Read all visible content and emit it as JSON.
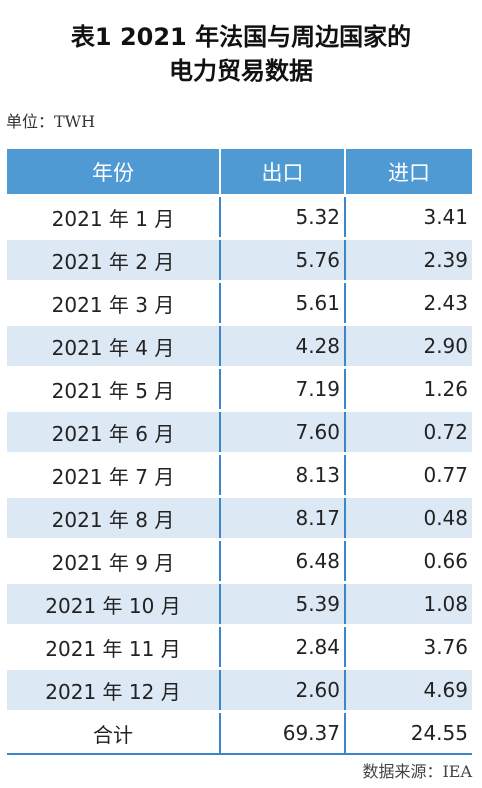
{
  "title": {
    "line1": "表1   2021 年法国与周边国家的",
    "line2": "电力贸易数据"
  },
  "unit": "单位：TWH",
  "table": {
    "headers": [
      "年份",
      "出口",
      "进口"
    ],
    "rows": [
      {
        "month": "2021 年 1 月",
        "export": "5.32",
        "import": "3.41"
      },
      {
        "month": "2021 年 2 月",
        "export": "5.76",
        "import": "2.39"
      },
      {
        "month": "2021 年 3 月",
        "export": "5.61",
        "import": "2.43"
      },
      {
        "month": "2021 年 4 月",
        "export": "4.28",
        "import": "2.90"
      },
      {
        "month": "2021 年 5 月",
        "export": "7.19",
        "import": "1.26"
      },
      {
        "month": "2021 年 6 月",
        "export": "7.60",
        "import": "0.72"
      },
      {
        "month": "2021 年 7 月",
        "export": "8.13",
        "import": "0.77"
      },
      {
        "month": "2021 年 8 月",
        "export": "8.17",
        "import": "0.48"
      },
      {
        "month": "2021 年 9 月",
        "export": "6.48",
        "import": "0.66"
      },
      {
        "month": "2021 年 10 月",
        "export": "5.39",
        "import": "1.08"
      },
      {
        "month": "2021 年 11 月",
        "export": "2.84",
        "import": "3.76"
      },
      {
        "month": "2021 年 12 月",
        "export": "2.60",
        "import": "4.69"
      }
    ],
    "total": {
      "label": "合计",
      "export": "69.37",
      "import": "24.55"
    }
  },
  "source": "数据来源：IEA"
}
